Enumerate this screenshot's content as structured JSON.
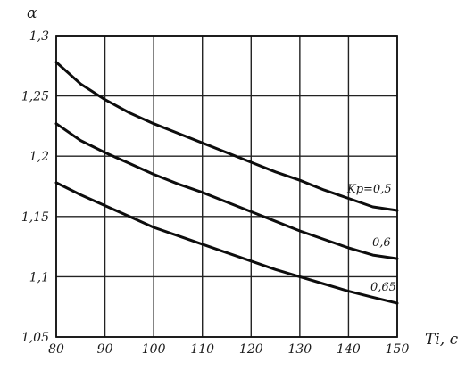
{
  "chart_data": {
    "type": "line",
    "xlabel": "Ti, c",
    "ylabel": "α",
    "xlim": [
      80,
      150
    ],
    "ylim": [
      1.05,
      1.3
    ],
    "x_ticks": [
      "80",
      "90",
      "100",
      "110",
      "120",
      "130",
      "140",
      "150"
    ],
    "y_ticks": [
      "1,05",
      "1,1",
      "1,15",
      "1,2",
      "1,25",
      "1,3"
    ],
    "grid": true,
    "series": [
      {
        "name": "Kp=0,5",
        "x": [
          80,
          85,
          90,
          95,
          100,
          105,
          110,
          115,
          120,
          125,
          130,
          135,
          140,
          145,
          150
        ],
        "values": [
          1.278,
          1.26,
          1.247,
          1.236,
          1.227,
          1.219,
          1.211,
          1.203,
          1.195,
          1.187,
          1.18,
          1.172,
          1.165,
          1.158,
          1.155
        ]
      },
      {
        "name": "0,6",
        "x": [
          80,
          85,
          90,
          95,
          100,
          105,
          110,
          115,
          120,
          125,
          130,
          135,
          140,
          145,
          150
        ],
        "values": [
          1.227,
          1.213,
          1.203,
          1.194,
          1.185,
          1.177,
          1.17,
          1.162,
          1.154,
          1.146,
          1.138,
          1.131,
          1.124,
          1.118,
          1.115
        ]
      },
      {
        "name": "0,65",
        "x": [
          80,
          85,
          90,
          95,
          100,
          105,
          110,
          115,
          120,
          125,
          130,
          135,
          140,
          145,
          150
        ],
        "values": [
          1.178,
          1.168,
          1.159,
          1.15,
          1.141,
          1.134,
          1.127,
          1.12,
          1.113,
          1.106,
          1.1,
          1.094,
          1.088,
          1.083,
          1.078
        ]
      }
    ]
  }
}
